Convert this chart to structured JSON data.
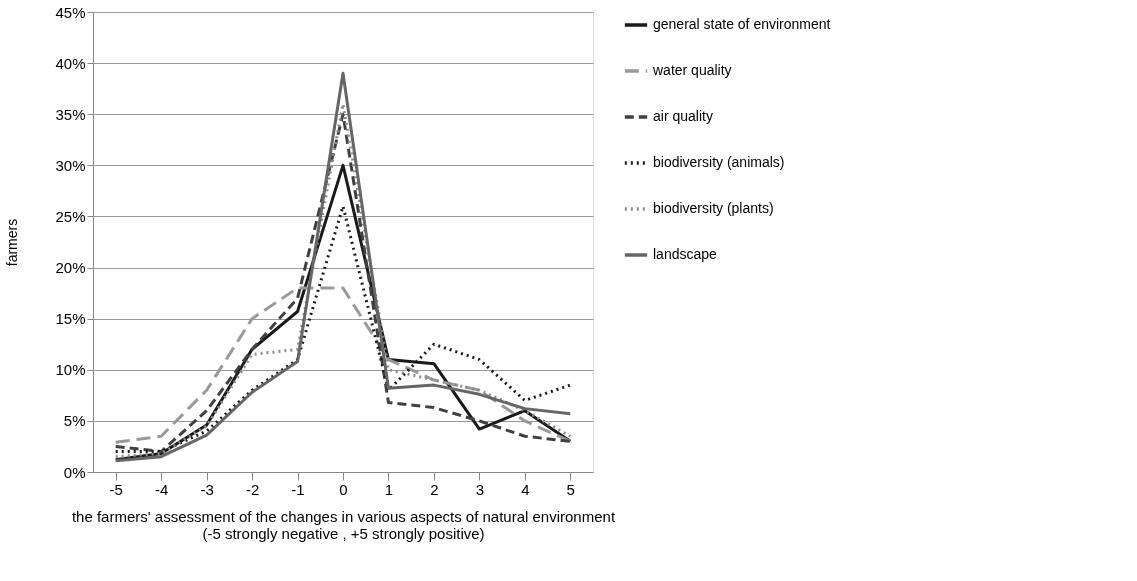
{
  "chart_data": {
    "type": "line",
    "xlabel": "the farmers' assessment of the changes in various aspects of natural environment\n(-5 strongly negative , +5  strongly positive)",
    "ylabel": "farmers",
    "categories": [
      "-5",
      "-4",
      "-3",
      "-2",
      "-1",
      "0",
      "1",
      "2",
      "3",
      "4",
      "5"
    ],
    "series": [
      {
        "name": "general state of environment",
        "color": "#1a1a1a",
        "line_style": "solid",
        "values": [
          1.2,
          1.8,
          4.6,
          12,
          15.7,
          30,
          11,
          10.6,
          4.2,
          6,
          3
        ]
      },
      {
        "name": "water quality",
        "color": "#999999",
        "line_style": "longdash",
        "values": [
          2.9,
          3.5,
          8,
          15,
          18,
          18,
          11,
          9,
          8,
          5,
          3
        ]
      },
      {
        "name": "air quality",
        "color": "#404040",
        "line_style": "dashed",
        "values": [
          2.5,
          2,
          6,
          12,
          17,
          35,
          6.8,
          6.3,
          5,
          3.5,
          3
        ]
      },
      {
        "name": "biodiversity (animals)",
        "color": "#1a1a1a",
        "line_style": "dotted",
        "values": [
          2,
          2,
          4,
          8,
          11,
          26,
          8,
          12.5,
          11,
          7,
          8.5
        ]
      },
      {
        "name": "biodiversity (plants)",
        "color": "#8c8c8c",
        "line_style": "dotted",
        "values": [
          1.5,
          1.8,
          4.5,
          11.5,
          12,
          36,
          10,
          9,
          8,
          6,
          3.5
        ]
      },
      {
        "name": "landscape",
        "color": "#666666",
        "line_style": "solid",
        "values": [
          1.1,
          1.5,
          3.6,
          7.8,
          10.8,
          39,
          8.2,
          8.5,
          7.6,
          6.2,
          5.7
        ]
      }
    ],
    "ylim": [
      0,
      45
    ],
    "yticks": [
      {
        "value": 0,
        "label": "0%"
      },
      {
        "value": 5,
        "label": "5%"
      },
      {
        "value": 10,
        "label": "10%"
      },
      {
        "value": 15,
        "label": "15%"
      },
      {
        "value": 20,
        "label": "20%"
      },
      {
        "value": 25,
        "label": "25%"
      },
      {
        "value": 30,
        "label": "30%"
      },
      {
        "value": 35,
        "label": "35%"
      },
      {
        "value": 40,
        "label": "40%"
      },
      {
        "value": 45,
        "label": "45%"
      }
    ],
    "grid": "y",
    "legend": "right",
    "marker": "none"
  }
}
